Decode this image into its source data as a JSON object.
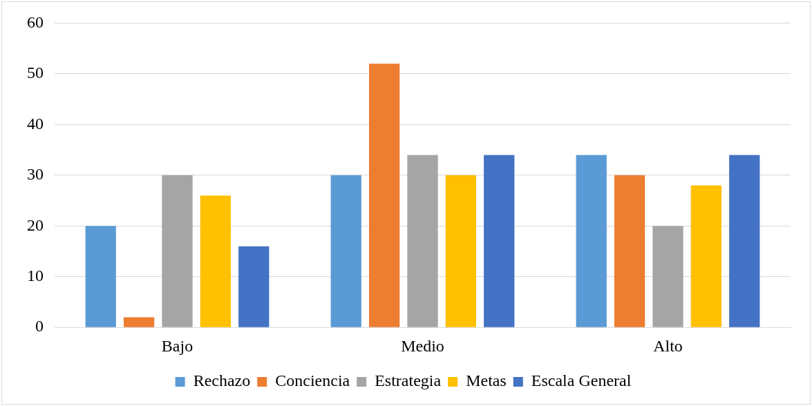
{
  "chart_data": {
    "type": "bar",
    "categories": [
      "Bajo",
      "Medio",
      "Alto"
    ],
    "series": [
      {
        "name": "Rechazo",
        "color": "#5b9bd5",
        "values": [
          20,
          30,
          34
        ]
      },
      {
        "name": "Conciencia",
        "color": "#ed7d31",
        "values": [
          2,
          52,
          30
        ]
      },
      {
        "name": "Estrategia",
        "color": "#a5a5a5",
        "values": [
          30,
          34,
          20
        ]
      },
      {
        "name": "Metas",
        "color": "#ffc000",
        "values": [
          26,
          30,
          28
        ]
      },
      {
        "name": "Escala General",
        "color": "#4472c4",
        "values": [
          16,
          34,
          34
        ]
      }
    ],
    "ylim": [
      0,
      60
    ],
    "yticks": [
      0,
      10,
      20,
      30,
      40,
      50,
      60
    ],
    "grid": "y",
    "legend": "bottom"
  }
}
